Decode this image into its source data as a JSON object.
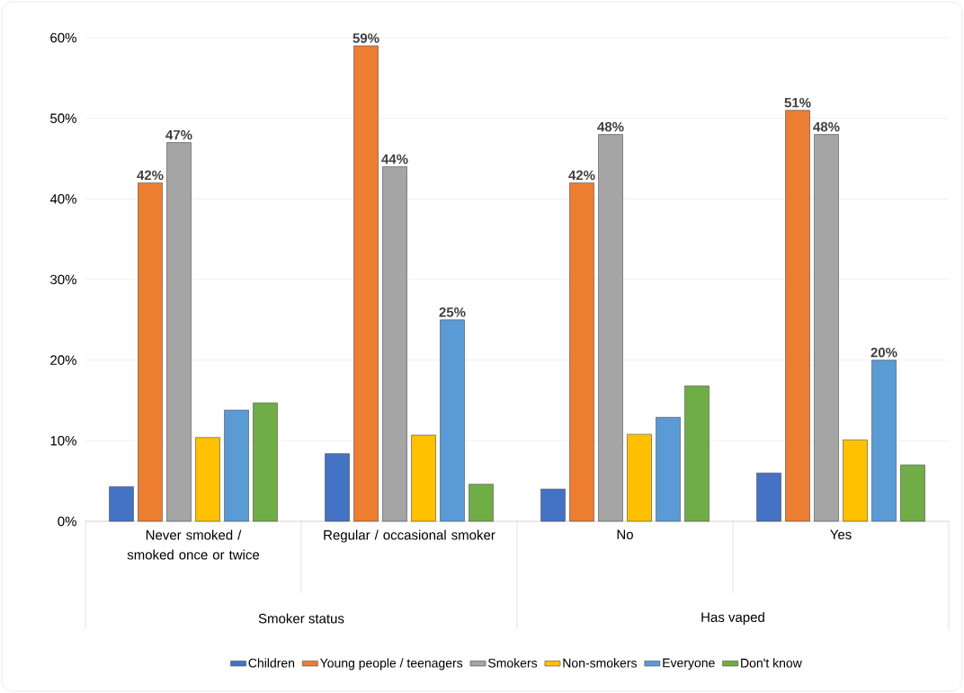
{
  "chart_data": {
    "type": "bar",
    "categories": [
      "Never smoked / smoked once or twice",
      "Regular / occasional smoker",
      "No",
      "Yes"
    ],
    "annotations": [
      "Smoker status",
      "Has vaped"
    ],
    "series": [
      {
        "name": "Children",
        "color": "#4472c4",
        "values": [
          4.3,
          8.4,
          4.0,
          6.0
        ],
        "value_labels": [
          null,
          null,
          null,
          null
        ]
      },
      {
        "name": "Young people / teenagers",
        "color": "#ed7d31",
        "values": [
          42,
          59,
          42,
          51
        ],
        "value_labels": [
          "42%",
          "59%",
          "42%",
          "51%"
        ]
      },
      {
        "name": "Smokers",
        "color": "#a5a5a5",
        "values": [
          47,
          44,
          48,
          48
        ],
        "value_labels": [
          "47%",
          "44%",
          "48%",
          "48%"
        ]
      },
      {
        "name": "Non-smokers",
        "color": "#ffc000",
        "values": [
          10.4,
          10.7,
          10.8,
          10.1
        ],
        "value_labels": [
          null,
          null,
          null,
          null
        ]
      },
      {
        "name": "Everyone",
        "color": "#5b9bd5",
        "values": [
          13.8,
          25,
          12.9,
          20
        ],
        "value_labels": [
          null,
          "25%",
          null,
          "20%"
        ]
      },
      {
        "name": "Don't know",
        "color": "#70ad47",
        "values": [
          14.7,
          4.6,
          16.8,
          7.0
        ],
        "value_labels": [
          null,
          null,
          null,
          null
        ]
      }
    ],
    "ylim": [
      0,
      60
    ],
    "yticks": [
      {
        "value": 0,
        "label": "0%"
      },
      {
        "value": 10,
        "label": "10%"
      },
      {
        "value": 20,
        "label": "20%"
      },
      {
        "value": 30,
        "label": "30%"
      },
      {
        "value": 40,
        "label": "40%"
      },
      {
        "value": 50,
        "label": "50%"
      },
      {
        "value": 60,
        "label": "60%"
      }
    ],
    "grid": "y",
    "legend": "bottom"
  }
}
